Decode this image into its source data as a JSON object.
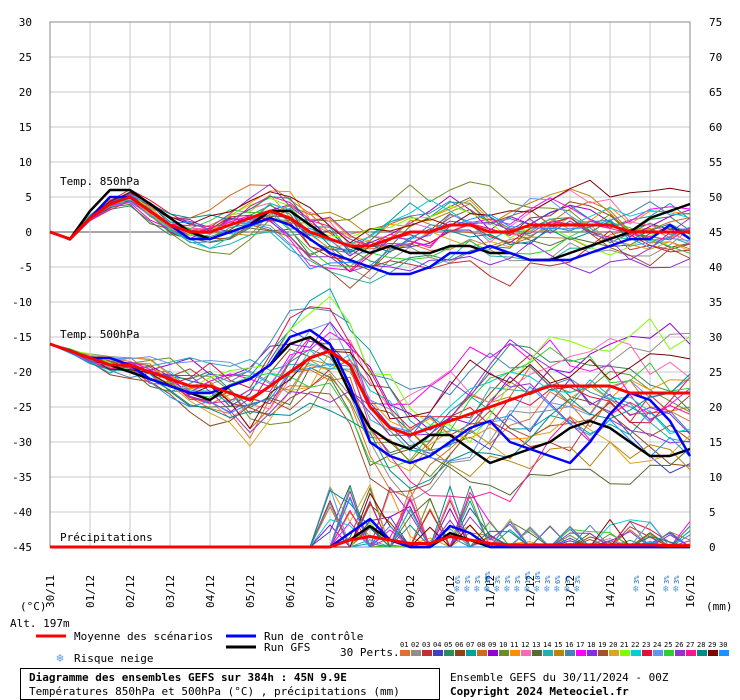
{
  "chart_data": {
    "type": "line",
    "x_labels": [
      "30/11",
      "01/12",
      "02/12",
      "03/12",
      "04/12",
      "05/12",
      "06/12",
      "07/12",
      "08/12",
      "09/12",
      "10/12",
      "11/12",
      "12/12",
      "13/12",
      "14/12",
      "15/12",
      "16/12"
    ],
    "left_axis": {
      "unit": "(°C)",
      "ticks": [
        30,
        25,
        20,
        15,
        10,
        5,
        0,
        -5,
        -10,
        -15,
        -20,
        -25,
        -30,
        -35,
        -40,
        -45
      ],
      "range": [
        -45,
        30
      ]
    },
    "right_axis": {
      "unit": "(mm)",
      "ticks": [
        75,
        70,
        65,
        60,
        55,
        50,
        45,
        40,
        35,
        30,
        25,
        20,
        15,
        10,
        5,
        0
      ],
      "range": [
        0,
        75
      ]
    },
    "annotations": {
      "t850": "Temp. 850hPa",
      "t500": "Temp. 500hPa",
      "precip": "Précipitations",
      "alt": "Alt. 197m"
    },
    "series": [
      {
        "name": "Moyenne des scénarios",
        "color": "#ff0000",
        "role": "mean",
        "t850": [
          0,
          -1,
          2,
          4,
          5,
          3,
          1,
          0,
          0,
          1,
          2,
          3,
          2,
          0,
          -1,
          -2,
          -2,
          -1,
          0,
          0,
          1,
          1,
          0,
          0,
          1,
          1,
          1,
          1,
          1,
          0,
          0,
          0,
          0
        ],
        "t500": [
          -16,
          -17,
          -18,
          -19,
          -19,
          -20,
          -21,
          -22,
          -22,
          -23,
          -24,
          -22,
          -20,
          -18,
          -17,
          -19,
          -25,
          -28,
          -29,
          -28,
          -27,
          -26,
          -25,
          -24,
          -23,
          -22,
          -22,
          -22,
          -22,
          -23,
          -23,
          -23,
          -23
        ],
        "precip": [
          0,
          0,
          0,
          0,
          0,
          0,
          0,
          0,
          0,
          0,
          0,
          0,
          0,
          0,
          0,
          1,
          1.5,
          1,
          0.5,
          0.5,
          1.5,
          1,
          0.5,
          0.3,
          0.3,
          0.3,
          0.3,
          0.3,
          0.3,
          0.3,
          0.3,
          0.2,
          0.2
        ]
      },
      {
        "name": "Run de contrôle",
        "color": "#0000ff",
        "role": "control",
        "t850": [
          0,
          -1,
          2,
          5,
          5,
          3,
          1,
          -1,
          -1,
          0,
          1,
          2,
          1,
          -1,
          -3,
          -4,
          -5,
          -6,
          -6,
          -5,
          -3,
          -3,
          -2,
          -3,
          -4,
          -4,
          -4,
          -3,
          -2,
          -1,
          -1,
          1,
          -1
        ],
        "t500": [
          -16,
          -17,
          -18,
          -18,
          -19,
          -21,
          -22,
          -23,
          -23,
          -22,
          -21,
          -19,
          -15,
          -14,
          -16,
          -22,
          -30,
          -32,
          -33,
          -32,
          -30,
          -28,
          -27,
          -30,
          -31,
          -32,
          -33,
          -30,
          -26,
          -23,
          -24,
          -27,
          -32
        ],
        "precip": [
          0,
          0,
          0,
          0,
          0,
          0,
          0,
          0,
          0,
          0,
          0,
          0,
          0,
          0,
          0,
          2,
          4,
          1,
          0,
          0,
          3,
          2,
          0,
          0,
          0,
          0,
          0,
          0,
          0,
          0,
          0,
          0,
          0
        ]
      },
      {
        "name": "Run GFS",
        "color": "#000000",
        "role": "gfs",
        "t850": [
          0,
          -1,
          3,
          6,
          6,
          4,
          2,
          0,
          -1,
          0,
          1,
          3,
          3,
          1,
          -1,
          -2,
          -3,
          -2,
          -3,
          -3,
          -2,
          -2,
          -3,
          -3,
          -4,
          -4,
          -3,
          -2,
          -1,
          0,
          2,
          3,
          4
        ],
        "t500": [
          -16,
          -17,
          -18,
          -19,
          -20,
          -21,
          -22,
          -23,
          -24,
          -22,
          -21,
          -19,
          -16,
          -15,
          -17,
          -23,
          -28,
          -30,
          -31,
          -29,
          -29,
          -31,
          -33,
          -32,
          -31,
          -30,
          -28,
          -27,
          -28,
          -30,
          -32,
          -32,
          -31
        ],
        "precip": [
          0,
          0,
          0,
          0,
          0,
          0,
          0,
          0,
          0,
          0,
          0,
          0,
          0,
          0,
          0,
          1,
          3,
          1,
          0,
          0,
          2,
          1,
          0,
          0,
          0,
          0,
          0,
          0,
          0,
          0,
          0,
          0,
          0
        ]
      }
    ],
    "perturbations_count": 30,
    "snow_risk": [
      {
        "day": "10/12",
        "pct": [
          "6%",
          "3%",
          "3%",
          "3%"
        ]
      },
      {
        "day": "11/12",
        "pct": [
          "10%",
          "3%",
          "3%",
          "3%",
          "10%",
          "10%",
          "3%",
          "6%",
          "3%",
          "3%"
        ]
      },
      {
        "day": "14/12",
        "pct": [
          "3%"
        ]
      },
      {
        "day": "15/12",
        "pct": [
          "3%",
          "3%"
        ]
      }
    ],
    "grid": true
  },
  "legend": {
    "mean": "Moyenne des scénarios",
    "control": "Run de contrôle",
    "gfs": "Run GFS",
    "snow": "Risque neige",
    "perts_label": "30 Perts.",
    "perts": [
      "01",
      "02",
      "03",
      "04",
      "05",
      "06",
      "07",
      "08",
      "09",
      "10",
      "11",
      "12",
      "13",
      "14",
      "15",
      "16",
      "17",
      "18",
      "19",
      "20",
      "21",
      "22",
      "23",
      "24",
      "25",
      "26",
      "27",
      "28",
      "29",
      "30"
    ],
    "pert_colors": [
      "#e07030",
      "#8f8f8f",
      "#c03030",
      "#4040c0",
      "#2e8b57",
      "#8b4513",
      "#00a0a0",
      "#d2691e",
      "#9400d3",
      "#6b8e23",
      "#ff8c00",
      "#ff69b4",
      "#556b2f",
      "#20b2aa",
      "#b8860b",
      "#4682b4",
      "#ff00ff",
      "#8a2be2",
      "#a0522d",
      "#daa520",
      "#7fff00",
      "#00ced1",
      "#dc143c",
      "#6495ed",
      "#32cd32",
      "#9932cc",
      "#ff1493",
      "#008b8b",
      "#800000",
      "#1e90ff"
    ]
  },
  "footer": {
    "title": "Diagramme des ensembles GEFS sur 384h : 45N 9.9E",
    "subtitle": "Températures 850hPa et 500hPa (°C) , précipitations (mm)",
    "run": "Ensemble GEFS du 30/11/2024 - 00Z",
    "copyright": "Copyright 2024 Meteociel.fr"
  }
}
